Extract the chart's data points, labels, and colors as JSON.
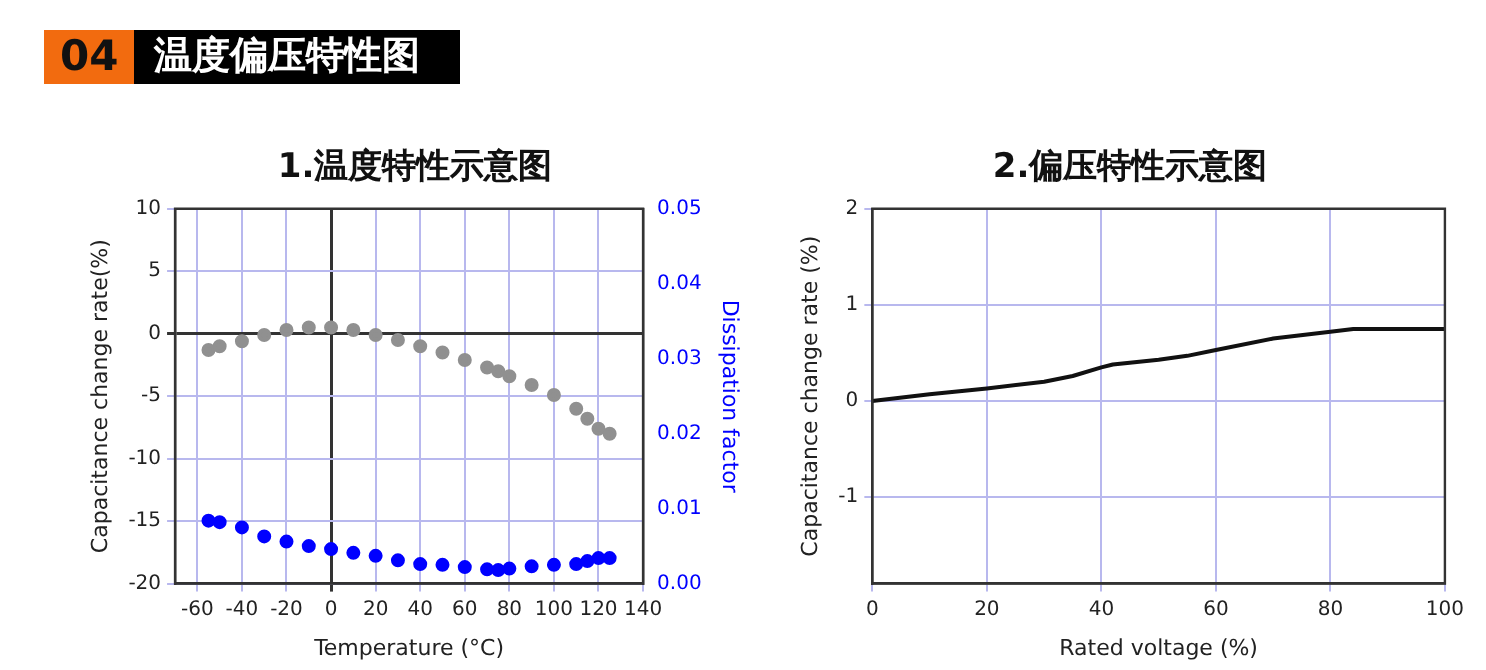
{
  "chart_data": [
    {
      "type": "other",
      "title": "温度偏压特性图",
      "annotations": [
        "04"
      ]
    },
    {
      "type": "scatter",
      "title": "1.温度特性示意图",
      "xlabel": "Temperature (°C)",
      "ylabel": "Capacitance change rate(%)",
      "y2label": "Dissipation factor",
      "marker": "circle",
      "grid": true,
      "x": [
        -55,
        -50,
        -40,
        -30,
        -20,
        -10,
        0,
        10,
        20,
        30,
        40,
        50,
        60,
        70,
        75,
        80,
        90,
        100,
        110,
        115,
        120,
        125
      ],
      "series": [
        {
          "color": "#909090",
          "values": [
            -1.3,
            -1.0,
            -0.6,
            -0.1,
            0.3,
            0.5,
            0.5,
            0.3,
            -0.1,
            -0.5,
            -1.0,
            -1.5,
            -2.1,
            -2.7,
            -3.0,
            -3.4,
            -4.1,
            -4.9,
            -6.0,
            -6.8,
            -7.6,
            -8.0
          ]
        },
        {
          "color": "#0000ff",
          "axis": "y2",
          "values": [
            0.0084,
            0.0082,
            0.0075,
            0.0063,
            0.0056,
            0.005,
            0.0046,
            0.0041,
            0.0037,
            0.0031,
            0.0026,
            0.0025,
            0.0022,
            0.0019,
            0.0018,
            0.002,
            0.0023,
            0.0025,
            0.0026,
            0.003,
            0.0034,
            0.0034
          ]
        }
      ],
      "xlim": [
        -70,
        140
      ],
      "xticks": [
        -60,
        -40,
        -20,
        0,
        20,
        40,
        60,
        80,
        100,
        120,
        140
      ],
      "ylim": [
        -20,
        10
      ],
      "yticks": [
        -20,
        -15,
        -10,
        -5,
        0,
        5,
        10
      ],
      "y2lim": [
        0,
        0.05
      ],
      "y2ticks": [
        {
          "value": 0,
          "label": "0.00"
        },
        0.01,
        0.02,
        0.03,
        0.04,
        0.05
      ]
    },
    {
      "type": "line",
      "title": "2.偏压特性示意图",
      "xlabel": "Rated voltage (%)",
      "ylabel": "Capacitance change rate (%)",
      "grid": true,
      "x": [
        0,
        10,
        20,
        30,
        35,
        40,
        42,
        50,
        55,
        60,
        70,
        80,
        84,
        100
      ],
      "series": [
        {
          "color": "#111111",
          "values": [
            0,
            0.07,
            0.13,
            0.2,
            0.26,
            0.35,
            0.38,
            0.43,
            0.47,
            0.53,
            0.65,
            0.72,
            0.75,
            0.75
          ]
        }
      ],
      "xlim": [
        0,
        100
      ],
      "xticks": [
        0,
        20,
        40,
        60,
        80,
        100
      ],
      "ylim": [
        -1.9,
        2
      ],
      "yticks": [
        -1,
        0,
        1,
        2
      ]
    }
  ]
}
